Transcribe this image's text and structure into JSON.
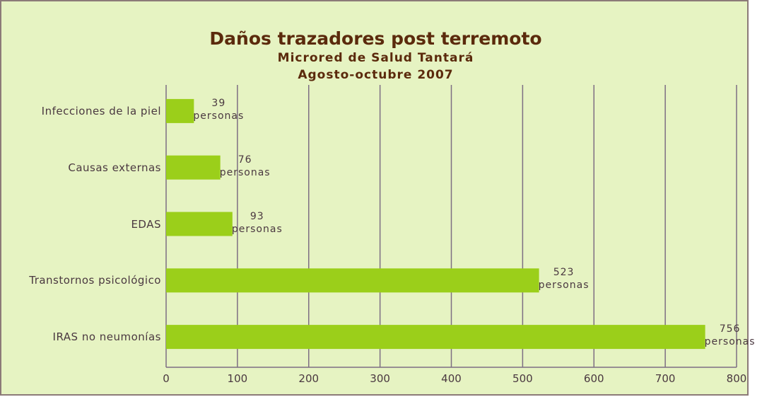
{
  "chart_data": {
    "type": "bar",
    "orientation": "horizontal",
    "title": "Daños trazadores post terremoto",
    "subtitle": [
      "Microred de Salud Tantará",
      "Agosto-octubre 2007"
    ],
    "categories": [
      "Infecciones de la piel",
      "Causas externas",
      "EDAS",
      "Transtornos psicológico",
      "IRAS no neumonías"
    ],
    "values": [
      39,
      76,
      93,
      523,
      756
    ],
    "value_labels": [
      "39 personas",
      "76 personas",
      "93 personas",
      "523 personas",
      "756 personas"
    ],
    "color": "#9bcf1a",
    "xlim": [
      0,
      800
    ],
    "xticks": [
      0,
      100,
      200,
      300,
      400,
      500,
      600,
      700,
      800
    ],
    "grid": true
  }
}
